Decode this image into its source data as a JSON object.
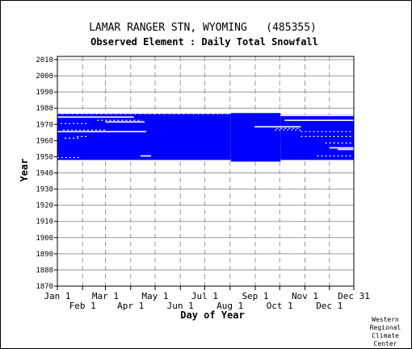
{
  "chart_data": {
    "type": "heatmap",
    "title": "LAMAR RANGER STN, WYOMING   (485355)",
    "subtitle": "Observed Element : Daily Total Snowfall",
    "xlabel": "Day of Year",
    "ylabel": "Year",
    "xlim": [
      1,
      365
    ],
    "ylim": [
      1870,
      2012
    ],
    "grid": true,
    "colors": {
      "data": "#0000ff",
      "grid": "#999999",
      "axis": "#000000"
    },
    "x_ticks_top_row": [
      {
        "label": "Jan 1",
        "day": 1
      },
      {
        "label": "Mar 1",
        "day": 60
      },
      {
        "label": "May 1",
        "day": 121
      },
      {
        "label": "Jul 1",
        "day": 182
      },
      {
        "label": "Sep 1",
        "day": 244
      },
      {
        "label": "Nov 1",
        "day": 305
      },
      {
        "label": "Dec 31",
        "day": 365
      }
    ],
    "x_ticks_bottom_row": [
      {
        "label": "Feb 1",
        "day": 32
      },
      {
        "label": "Apr 1",
        "day": 91
      },
      {
        "label": "Jun 1",
        "day": 152
      },
      {
        "label": "Aug 1",
        "day": 213
      },
      {
        "label": "Oct 1",
        "day": 274
      },
      {
        "label": "Dec 1",
        "day": 335
      }
    ],
    "y_ticks": [
      1870,
      1880,
      1890,
      1900,
      1910,
      1920,
      1930,
      1940,
      1950,
      1960,
      1970,
      1980,
      1990,
      2000,
      2010
    ],
    "coverage": [
      {
        "year_start": 1948,
        "year_end": 1976,
        "day_start": 1,
        "day_end": 214
      },
      {
        "year_start": 1947,
        "year_end": 1976,
        "day_start": 214,
        "day_end": 275
      },
      {
        "year_start": 1948,
        "year_end": 1975,
        "day_start": 275,
        "day_end": 365
      }
    ],
    "gaps": [
      {
        "year": 1976,
        "day_start": 1,
        "day_end": 214,
        "type": "ticks"
      },
      {
        "year": 1974,
        "day_start": 1,
        "day_end": 95,
        "type": "solid"
      },
      {
        "year": 1972,
        "day_start": 50,
        "day_end": 105,
        "type": "dotted"
      },
      {
        "year": 1971,
        "day_start": 60,
        "day_end": 108,
        "type": "solid"
      },
      {
        "year": 1970,
        "day_start": 5,
        "day_end": 40,
        "type": "dotted"
      },
      {
        "year": 1966,
        "day_start": 8,
        "day_end": 60,
        "type": "dotted"
      },
      {
        "year": 1965,
        "day_start": 1,
        "day_end": 110,
        "type": "solid"
      },
      {
        "year": 1962,
        "day_start": 25,
        "day_end": 40,
        "type": "dotted"
      },
      {
        "year": 1961,
        "day_start": 10,
        "day_end": 30,
        "type": "dotted"
      },
      {
        "year": 1950,
        "day_start": 103,
        "day_end": 116,
        "type": "solid"
      },
      {
        "year": 1949,
        "day_start": 1,
        "day_end": 30,
        "type": "dotted"
      },
      {
        "year": 1975,
        "day_start": 275,
        "day_end": 365,
        "type": "solid"
      },
      {
        "year": 1972,
        "day_start": 280,
        "day_end": 365,
        "type": "solid"
      },
      {
        "year": 1968,
        "day_start": 243,
        "day_end": 300,
        "type": "solid"
      },
      {
        "year": 1967,
        "day_start": 270,
        "day_end": 298,
        "type": "dotted"
      },
      {
        "year": 1966,
        "day_start": 268,
        "day_end": 300,
        "type": "dotted"
      },
      {
        "year": 1965,
        "day_start": 300,
        "day_end": 365,
        "type": "dotted"
      },
      {
        "year": 1962,
        "day_start": 300,
        "day_end": 365,
        "type": "dotted"
      },
      {
        "year": 1958,
        "day_start": 330,
        "day_end": 365,
        "type": "dotted"
      },
      {
        "year": 1955,
        "day_start": 335,
        "day_end": 365,
        "type": "solid"
      },
      {
        "year": 1954,
        "day_start": 345,
        "day_end": 365,
        "type": "solid"
      },
      {
        "year": 1950,
        "day_start": 320,
        "day_end": 365,
        "type": "dotted"
      }
    ]
  },
  "footer": {
    "credit_lines": [
      "Western",
      "Regional",
      "Climate",
      "Center"
    ]
  }
}
